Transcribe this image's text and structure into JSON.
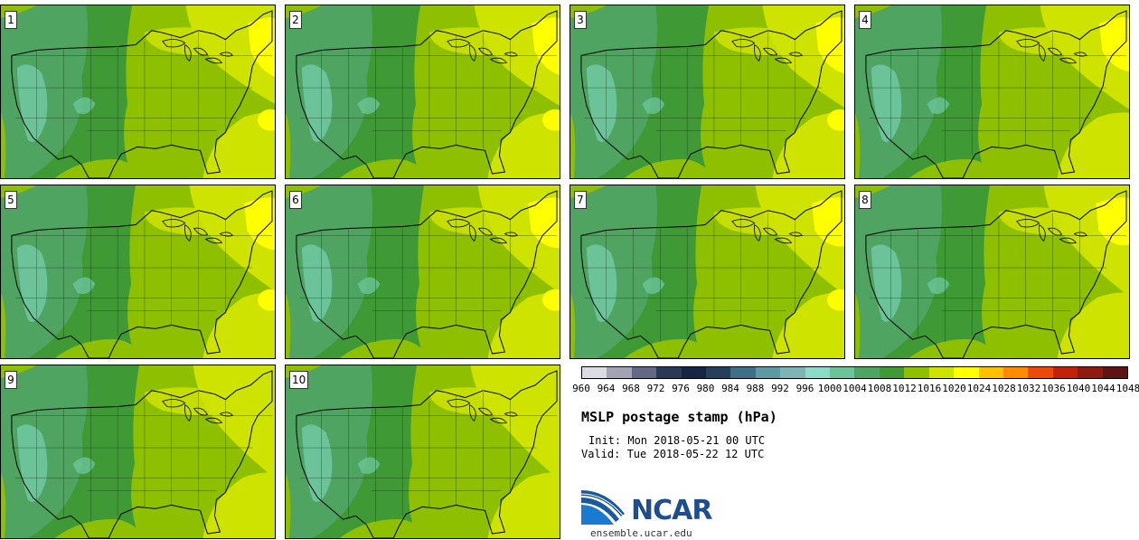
{
  "panels": [
    {
      "label": "1",
      "variant": 0
    },
    {
      "label": "2",
      "variant": 1
    },
    {
      "label": "3",
      "variant": 2
    },
    {
      "label": "4",
      "variant": 3
    },
    {
      "label": "5",
      "variant": 4
    },
    {
      "label": "6",
      "variant": 5
    },
    {
      "label": "7",
      "variant": 6
    },
    {
      "label": "8",
      "variant": 7
    },
    {
      "label": "9",
      "variant": 8
    },
    {
      "label": "10",
      "variant": 9
    }
  ],
  "colorbar": {
    "colors": [
      "#dcdde3",
      "#a2a4b6",
      "#636884",
      "#2a3956",
      "#152542",
      "#263f5c",
      "#3f6f86",
      "#5d9aa4",
      "#7fb4b7",
      "#8ddac8",
      "#6cc39a",
      "#4fa462",
      "#3f9a36",
      "#8fc000",
      "#cfe300",
      "#ffff00",
      "#ffc000",
      "#ff8c00",
      "#ee4a07",
      "#c4210c",
      "#8e1a10",
      "#5e1412"
    ],
    "ticks": [
      "960",
      "964",
      "968",
      "972",
      "976",
      "980",
      "984",
      "988",
      "992",
      "996",
      "1000",
      "1004",
      "1008",
      "1012",
      "1016",
      "1020",
      "1024",
      "1028",
      "1032",
      "1036",
      "1040",
      "1044",
      "1048"
    ]
  },
  "title": "MSLP postage stamp (hPa)",
  "init": "Init: Mon 2018-05-21 00 UTC",
  "valid": "Valid: Tue 2018-05-22 12 UTC",
  "logo": {
    "text": "NCAR",
    "site": "ensemble.ucar.edu"
  },
  "map_colors": {
    "c1008": "#6cc39a",
    "c1012": "#4fa462",
    "c1016": "#3f9a36",
    "c1020": "#8fc000",
    "c1024": "#cfe300",
    "c1028": "#ffff00"
  }
}
